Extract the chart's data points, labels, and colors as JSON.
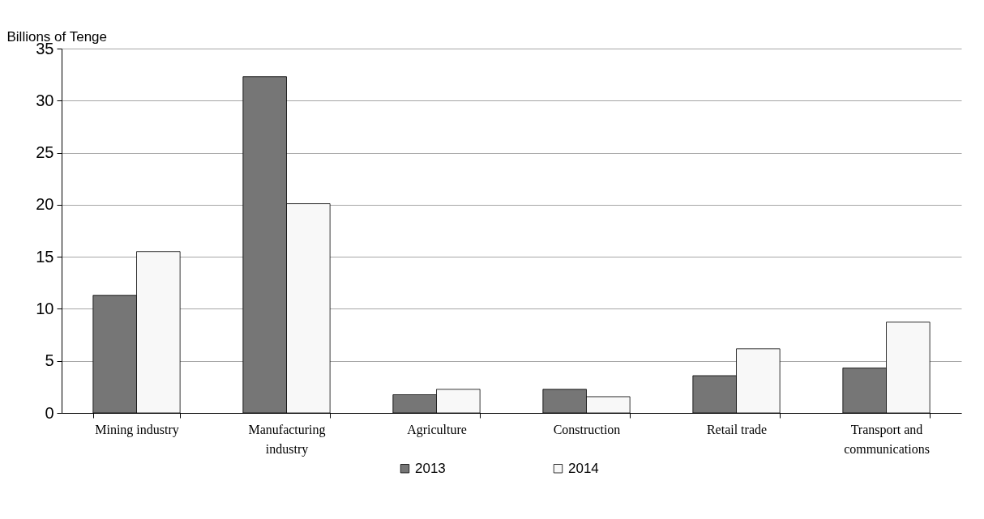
{
  "chart_data": {
    "type": "bar",
    "ylabel": "Billions of Tenge",
    "categories": [
      "Mining industry",
      "Manufacturing industry",
      "Agriculture",
      "Construction",
      "Retail trade",
      "Transport and communications"
    ],
    "series": [
      {
        "name": "2013",
        "color": "#767676",
        "values": [
          11.3,
          32.3,
          1.75,
          2.27,
          3.58,
          4.32
        ]
      },
      {
        "name": "2014",
        "color": "#f8f8f8",
        "values": [
          15.5,
          20.1,
          2.27,
          1.56,
          6.16,
          8.72
        ]
      }
    ],
    "ylim": [
      0,
      35
    ],
    "yticks": [
      0,
      5,
      10,
      15,
      20,
      25,
      30,
      35
    ],
    "grid": "y",
    "legend": "bottom"
  }
}
